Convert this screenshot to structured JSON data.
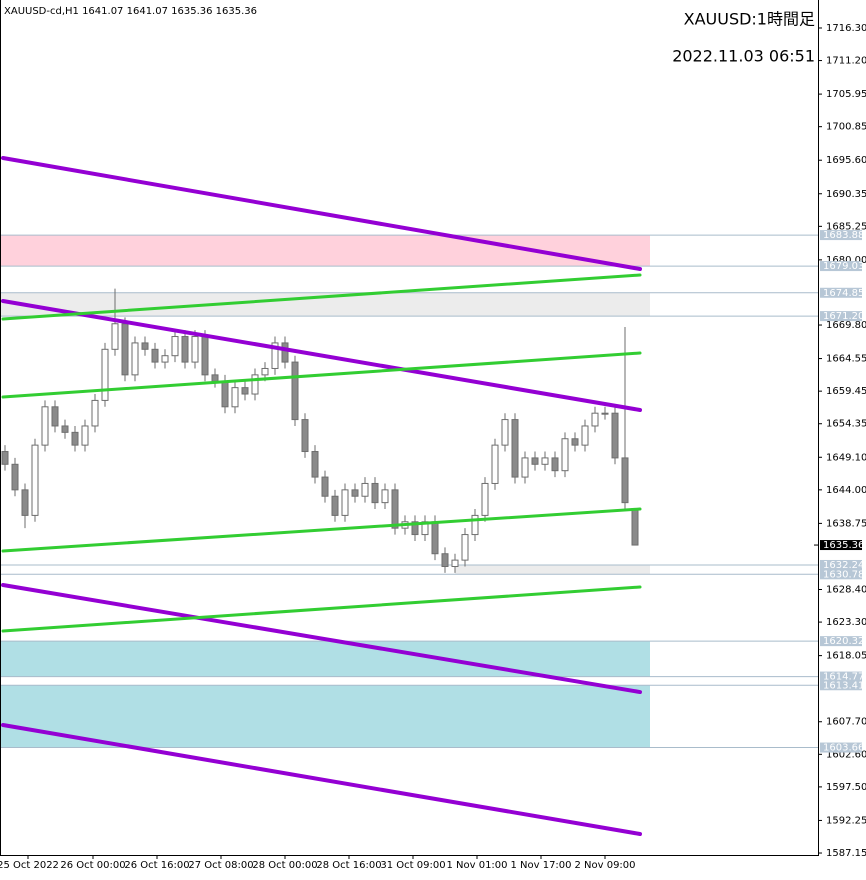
{
  "chart_data": {
    "type": "candlestick",
    "title": "XAUUSD-cd,H1  1641.07 1641.07 1635.36 1635.36",
    "symbol_label": "XAUUSD:1時間足",
    "timestamp": "2022.11.03 06:51",
    "up_color": "#ffffff",
    "down_color": "#8a8a8a",
    "wick_color": "#6e6e6e",
    "open": [
      1650,
      1648,
      1644,
      1640,
      1651,
      1657,
      1654,
      1653,
      1651,
      1654,
      1658,
      1666,
      1670,
      1662,
      1667,
      1666,
      1664,
      1665,
      1668,
      1664,
      1668,
      1662,
      1661,
      1657,
      1660,
      1659,
      1662,
      1663,
      1667,
      1664,
      1655,
      1650,
      1646,
      1643,
      1640,
      1644,
      1643,
      1645,
      1642,
      1644,
      1638,
      1639,
      1637,
      1639,
      1634,
      1632,
      1633,
      1637,
      1640,
      1645,
      1651,
      1655,
      1646,
      1649,
      1648,
      1649,
      1647,
      1652,
      1651,
      1654,
      1656,
      1656,
      1649,
      1641.07
    ],
    "high": [
      1651,
      1649,
      1645,
      1652,
      1658,
      1658,
      1655,
      1654,
      1655,
      1659,
      1667,
      1675.5,
      1671,
      1668,
      1668,
      1667,
      1666,
      1669,
      1669,
      1669,
      1669,
      1663,
      1662,
      1661,
      1661,
      1663,
      1664,
      1668,
      1668,
      1665,
      1656,
      1651,
      1647,
      1644,
      1645,
      1645,
      1646,
      1646,
      1645,
      1645,
      1640,
      1640,
      1640,
      1640,
      1635,
      1634,
      1638,
      1641,
      1646,
      1652,
      1656,
      1656,
      1650,
      1650,
      1650,
      1650,
      1653,
      1653,
      1655,
      1657,
      1657,
      1657,
      1669.5,
      1641.07
    ],
    "low": [
      1647,
      1643,
      1638,
      1639,
      1650,
      1653,
      1652,
      1650,
      1650,
      1653,
      1657,
      1665,
      1661,
      1661,
      1665,
      1663,
      1663,
      1664,
      1663,
      1663,
      1661,
      1660,
      1656,
      1656,
      1658,
      1658,
      1661,
      1662,
      1663,
      1654,
      1649,
      1645,
      1642,
      1639,
      1639,
      1642,
      1642,
      1641,
      1641,
      1637,
      1637,
      1636,
      1636,
      1633,
      1631,
      1631,
      1632,
      1636,
      1639,
      1644,
      1650,
      1645,
      1645,
      1647,
      1647,
      1646,
      1646,
      1650,
      1650,
      1653,
      1655,
      1648,
      1641,
      1635.36
    ],
    "close": [
      1648,
      1644,
      1640,
      1651,
      1657,
      1654,
      1653,
      1651,
      1654,
      1658,
      1666,
      1670,
      1662,
      1667,
      1666,
      1664,
      1665,
      1668,
      1664,
      1668,
      1662,
      1661,
      1657,
      1660,
      1659,
      1662,
      1663,
      1667,
      1664,
      1655,
      1650,
      1646,
      1643,
      1640,
      1644,
      1643,
      1645,
      1642,
      1644,
      1638,
      1639,
      1637,
      1639,
      1634,
      1632,
      1633,
      1637,
      1640,
      1645,
      1651,
      1655,
      1646,
      1649,
      1648,
      1649,
      1647,
      1652,
      1651,
      1654,
      1656,
      1656,
      1649,
      1642,
      1635.36
    ],
    "xlim": [
      -0.5,
      81.3
    ],
    "xticks": [
      {
        "value": 2.3,
        "label": "25 Oct 2022"
      },
      {
        "value": 8.8,
        "label": "26 Oct 00:00"
      },
      {
        "value": 15.2,
        "label": "26 Oct 16:00"
      },
      {
        "value": 21.6,
        "label": "27 Oct 08:00"
      },
      {
        "value": 28,
        "label": "28 Oct 00:00"
      },
      {
        "value": 34.4,
        "label": "28 Oct 16:00"
      },
      {
        "value": 40.8,
        "label": "31 Oct 09:00"
      },
      {
        "value": 47.2,
        "label": "1 Nov 01:00"
      },
      {
        "value": 53.6,
        "label": "1 Nov 17:00"
      },
      {
        "value": 60,
        "label": "2 Nov 09:00"
      }
    ],
    "ylim": [
      1586.84,
      1720.68
    ],
    "yticks": [
      {
        "value": 1716.3,
        "label": "1716.30"
      },
      {
        "value": 1711.2,
        "label": "1711.20"
      },
      {
        "value": 1705.95,
        "label": "1705.95"
      },
      {
        "value": 1700.85,
        "label": "1700.85"
      },
      {
        "value": 1695.6,
        "label": "1695.60"
      },
      {
        "value": 1690.35,
        "label": "1690.35"
      },
      {
        "value": 1685.25,
        "label": "1685.25"
      },
      {
        "value": 1680,
        "label": "1680.00"
      },
      {
        "value": 1669.8,
        "label": "1669.80"
      },
      {
        "value": 1664.55,
        "label": "1664.55"
      },
      {
        "value": 1659.45,
        "label": "1659.45"
      },
      {
        "value": 1654.35,
        "label": "1654.35"
      },
      {
        "value": 1649.1,
        "label": "1649.10"
      },
      {
        "value": 1644,
        "label": "1644.00"
      },
      {
        "value": 1638.75,
        "label": "1638.75"
      },
      {
        "value": 1628.4,
        "label": "1628.40"
      },
      {
        "value": 1623.3,
        "label": "1623.30"
      },
      {
        "value": 1618.05,
        "label": "1618.05"
      },
      {
        "value": 1607.7,
        "label": "1607.70"
      },
      {
        "value": 1602.6,
        "label": "1602.60"
      },
      {
        "value": 1597.5,
        "label": "1597.50"
      },
      {
        "value": 1592.25,
        "label": "1592.25"
      },
      {
        "value": 1587.15,
        "label": "1587.15"
      }
    ],
    "zones": [
      {
        "top": 1683.88,
        "bottom": 1679.03,
        "x": [
          -0.5,
          64.5
        ],
        "color": "#ffd1dc"
      },
      {
        "top": 1674.85,
        "bottom": {
          "value": 1671.2,
          "label": "1671.20"
        },
        "x": [
          -0.5,
          64.5
        ],
        "color": "#ececec"
      },
      {
        "top": 1632.24,
        "bottom": 1630.78,
        "x": [
          45,
          64.5
        ],
        "color": "#ececec"
      },
      {
        "top": 1620.32,
        "bottom": 1614.77,
        "x": [
          -0.5,
          64.5
        ],
        "color": "#b0dfe5"
      },
      {
        "top": 1613.41,
        "bottom": 1603.66,
        "x": [
          -0.5,
          64.5
        ],
        "color": "#b0dfe5"
      }
    ],
    "trend_lines": [
      {
        "x": [
          -0.2,
          63.5
        ],
        "values": [
          1695.95,
          1678.57
        ],
        "color": "#9400d3"
      },
      {
        "x": [
          -0.2,
          63.5
        ],
        "values": [
          1673.56,
          1656.5
        ],
        "color": "#9400d3"
      },
      {
        "x": [
          -0.2,
          63.5
        ],
        "values": [
          1629.1,
          1612.35
        ],
        "color": "#9400d3"
      },
      {
        "x": [
          -0.2,
          63.5
        ],
        "values": [
          1607.19,
          1590.13
        ],
        "color": "#9400d3"
      },
      {
        "x": [
          -0.2,
          63.5
        ],
        "values": [
          1670.75,
          1677.63
        ],
        "color": "#32cd32"
      },
      {
        "x": [
          -0.2,
          63.5
        ],
        "values": [
          1658.53,
          1665.42
        ],
        "color": "#32cd32"
      },
      {
        "x": [
          -0.2,
          63.5
        ],
        "values": [
          1634.43,
          1641.0
        ],
        "color": "#32cd32"
      },
      {
        "x": [
          -0.2,
          63.5
        ],
        "values": [
          1621.9,
          1628.79
        ],
        "color": "#32cd32"
      }
    ]
  }
}
